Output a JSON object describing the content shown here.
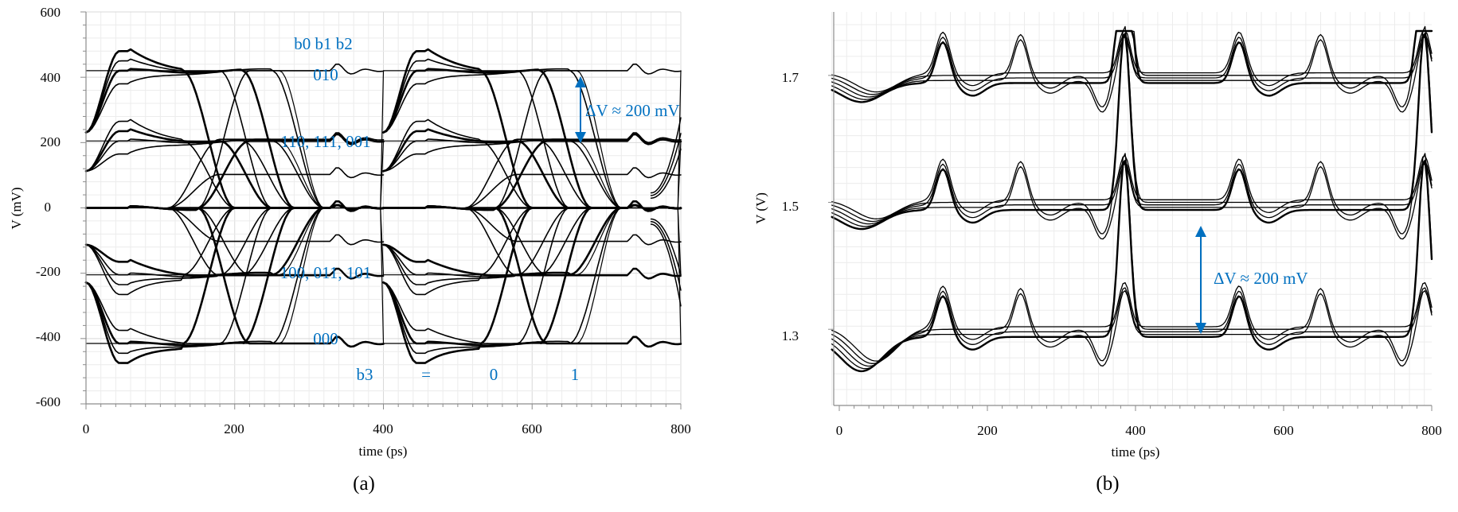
{
  "chart_data": [
    {
      "panel_label": "(a)",
      "type": "line",
      "xlabel": "time (ps)",
      "ylabel": "V (mV)",
      "xlim": [
        0,
        800
      ],
      "ylim": [
        -600,
        600
      ],
      "xticks": [
        "0",
        "200",
        "400",
        "600",
        "800"
      ],
      "yticks": [
        "600",
        "400",
        "200",
        "0",
        "-200",
        "-400",
        "-600"
      ],
      "grid": true,
      "levels_mV": [
        420,
        205,
        0,
        -205,
        -415
      ],
      "annotations": {
        "bits_header": "b0 b1 b2",
        "code_top": "010",
        "code_upper": "110, 111, 001",
        "code_lower": "100, 011, 101",
        "code_bottom": "000",
        "b3_label": "b3",
        "b3_eq": "=",
        "b3_zero": "0",
        "b3_one": "1",
        "delta": "ΔV ≈ 200 mV"
      },
      "arrow_color": "#0070C0"
    },
    {
      "panel_label": "(b)",
      "type": "line",
      "xlabel": "time (ps)",
      "ylabel": "V (V)",
      "xlim": [
        0,
        800
      ],
      "ylim": [
        1.18,
        1.8
      ],
      "xticks": [
        "0",
        "200",
        "400",
        "600",
        "800"
      ],
      "yticks": [
        "1.7",
        "1.5",
        "1.3"
      ],
      "grid": true,
      "levels_V": [
        1.7,
        1.5,
        1.3
      ],
      "annotations": {
        "delta": "ΔV ≈ 200 mV"
      },
      "arrow_color": "#0070C0"
    }
  ]
}
